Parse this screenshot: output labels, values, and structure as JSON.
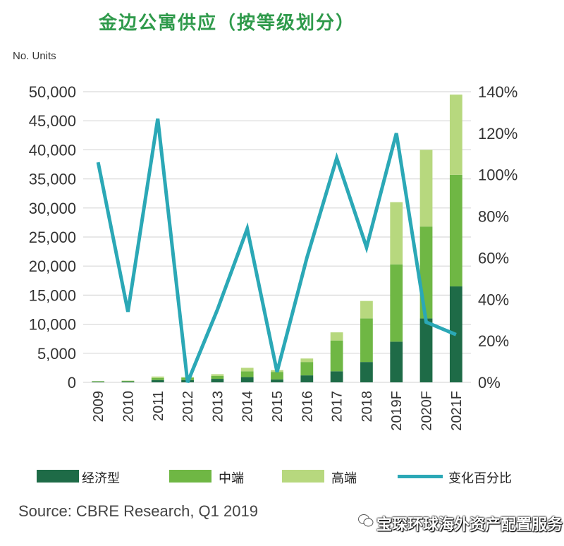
{
  "title": "金边公寓供应（按等级划分）",
  "source": "Source: CBRE Research, Q1 2019",
  "watermark": "宝琛环球海外资产配置服务",
  "colors": {
    "economy": "#1e6b47",
    "midrange": "#6fb744",
    "highend": "#b7d87e",
    "change": "#2ba8b6",
    "title": "#2f9a4b",
    "grid": "#d9d9d9"
  },
  "chart_data": {
    "type": "bar",
    "stacked": true,
    "y_axis_label": "No. Units",
    "categories": [
      "2009",
      "2010",
      "2011",
      "2012",
      "2013",
      "2014",
      "2015",
      "2016",
      "2017",
      "2018",
      "2019F",
      "2020F",
      "2021F"
    ],
    "ylim": [
      0,
      50000
    ],
    "yticks": [
      "0",
      "5,000",
      "10,000",
      "15,000",
      "20,000",
      "25,000",
      "30,000",
      "35,000",
      "40,000",
      "45,000",
      "50,000"
    ],
    "y2lim": [
      0,
      140
    ],
    "y2ticks": [
      "0%",
      "20%",
      "40%",
      "60%",
      "80%",
      "100%",
      "120%",
      "140%"
    ],
    "grid": true,
    "series": [
      {
        "name": "经济型",
        "values": [
          100,
          150,
          400,
          400,
          600,
          900,
          500,
          1200,
          1900,
          3500,
          7000,
          11000,
          16500
        ]
      },
      {
        "name": "中端",
        "values": [
          100,
          100,
          350,
          400,
          500,
          1000,
          1300,
          2300,
          5300,
          7500,
          13300,
          15800,
          19200
        ]
      },
      {
        "name": "高端",
        "values": [
          0,
          50,
          250,
          100,
          300,
          600,
          300,
          600,
          1400,
          3000,
          10700,
          13200,
          13800
        ]
      }
    ],
    "line_series": {
      "name": "变化百分比",
      "axis": "right",
      "values": [
        106,
        34,
        127,
        0,
        35,
        74,
        5,
        60,
        108,
        65,
        120,
        29,
        23
      ]
    }
  }
}
